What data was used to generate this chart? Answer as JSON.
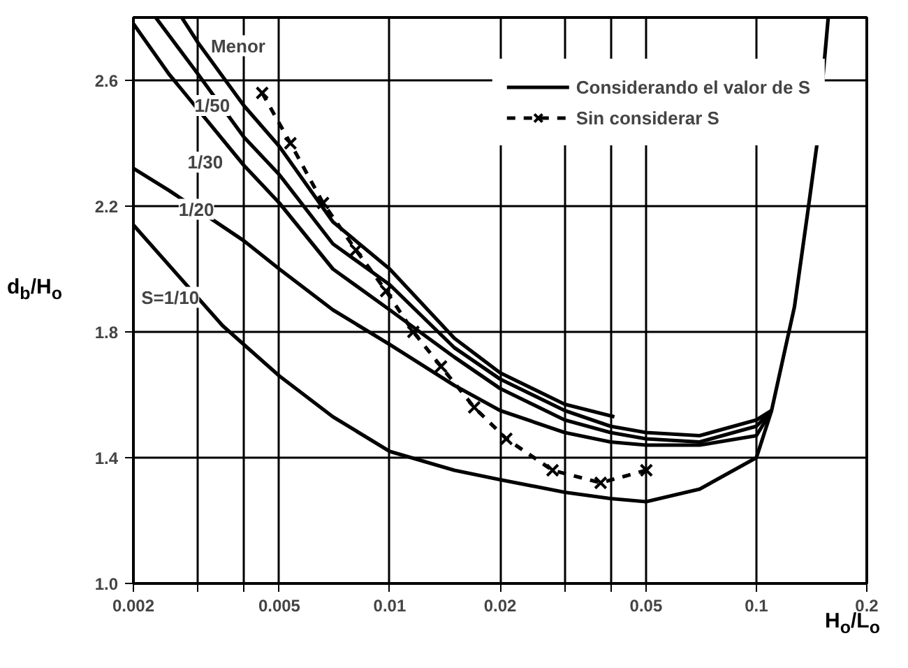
{
  "chart_data": {
    "type": "line",
    "xlabel": "H$_{o}$/L$_{o}$",
    "ylabel": "d$_{b}$/H$_{o}$",
    "log": "x",
    "xlim": [
      0.002,
      0.2
    ],
    "ylim": [
      1.0,
      2.8
    ],
    "xticks": [
      0.002,
      {
        "value": 0.003,
        "label": null
      },
      {
        "value": 0.004,
        "label": null
      },
      0.005,
      0.01,
      0.02,
      {
        "value": 0.03,
        "label": null
      },
      {
        "value": 0.04,
        "label": null
      },
      0.05,
      0.1,
      0.2
    ],
    "yticks": [
      {
        "value": 1.0,
        "label": "1.0"
      },
      1.4,
      1.8,
      2.2,
      2.6
    ],
    "grid": true,
    "legend": "top right",
    "line_style": "solid",
    "marker": "none",
    "series": [
      {
        "name": "Considerando el valor de S",
        "color": "#000000",
        "x": [
          0.00271,
          0.003,
          0.004,
          0.005,
          0.007,
          0.01,
          0.015,
          0.02,
          0.03,
          0.041
        ],
        "values": [
          2.8,
          2.72,
          2.52,
          2.39,
          2.15,
          2.0,
          1.78,
          1.67,
          1.57,
          1.53
        ]
      },
      {
        "color": "#000000",
        "x": [
          0.0023,
          0.003,
          0.004,
          0.005,
          0.007,
          0.01,
          0.015,
          0.02,
          0.03,
          0.04,
          0.05,
          0.07,
          0.1,
          0.11
        ],
        "values": [
          2.8,
          2.62,
          2.42,
          2.3,
          2.08,
          1.95,
          1.75,
          1.65,
          1.55,
          1.5,
          1.48,
          1.47,
          1.52,
          1.55
        ]
      },
      {
        "color": "#000000",
        "x": [
          0.002,
          0.0025,
          0.004,
          0.005,
          0.007,
          0.01,
          0.015,
          0.02,
          0.03,
          0.04,
          0.05,
          0.07,
          0.1,
          0.11
        ],
        "values": [
          2.78,
          2.62,
          2.33,
          2.21,
          2.0,
          1.87,
          1.72,
          1.62,
          1.52,
          1.48,
          1.46,
          1.45,
          1.5,
          1.55
        ]
      },
      {
        "color": "#000000",
        "x": [
          0.002,
          0.0025,
          0.004,
          0.005,
          0.007,
          0.01,
          0.015,
          0.02,
          0.03,
          0.04,
          0.05,
          0.07,
          0.1,
          0.11
        ],
        "values": [
          2.32,
          2.25,
          2.09,
          2.0,
          1.87,
          1.76,
          1.63,
          1.55,
          1.48,
          1.45,
          1.44,
          1.44,
          1.47,
          1.55
        ]
      },
      {
        "color": "#000000",
        "x": [
          0.002,
          0.0035,
          0.004,
          0.005,
          0.007,
          0.01,
          0.015,
          0.02,
          0.03,
          0.04,
          0.05,
          0.07,
          0.1,
          0.11,
          0.12,
          0.127,
          0.138,
          0.146,
          0.154,
          0.157
        ],
        "values": [
          2.14,
          1.82,
          1.76,
          1.66,
          1.53,
          1.42,
          1.36,
          1.33,
          1.29,
          1.27,
          1.26,
          1.3,
          1.4,
          1.55,
          1.75,
          1.88,
          2.18,
          2.39,
          2.69,
          2.8
        ]
      },
      {
        "name": "Sin considerar S",
        "color": "#000000",
        "line_style": "dashed",
        "marker": "cross",
        "x": [
          0.00449,
          0.00536,
          0.00658,
          0.00809,
          0.00978,
          0.0116,
          0.0138,
          0.017,
          0.0208,
          0.0278,
          0.0376,
          0.0501
        ],
        "values": [
          2.56,
          2.4,
          2.21,
          2.06,
          1.93,
          1.8,
          1.69,
          1.56,
          1.46,
          1.36,
          1.32,
          1.36
        ]
      }
    ],
    "annotations": [
      {
        "text": "Menor",
        "x": 0.00386,
        "y": 2.71
      },
      {
        "text": "1/50",
        "x": 0.00328,
        "y": 2.52
      },
      {
        "text": "1/30",
        "x": 0.00314,
        "y": 2.34
      },
      {
        "text": "1/20",
        "x": 0.00297,
        "y": 2.19
      },
      {
        "text": "S=1/10",
        "x": 0.00252,
        "y": 1.91
      }
    ]
  }
}
